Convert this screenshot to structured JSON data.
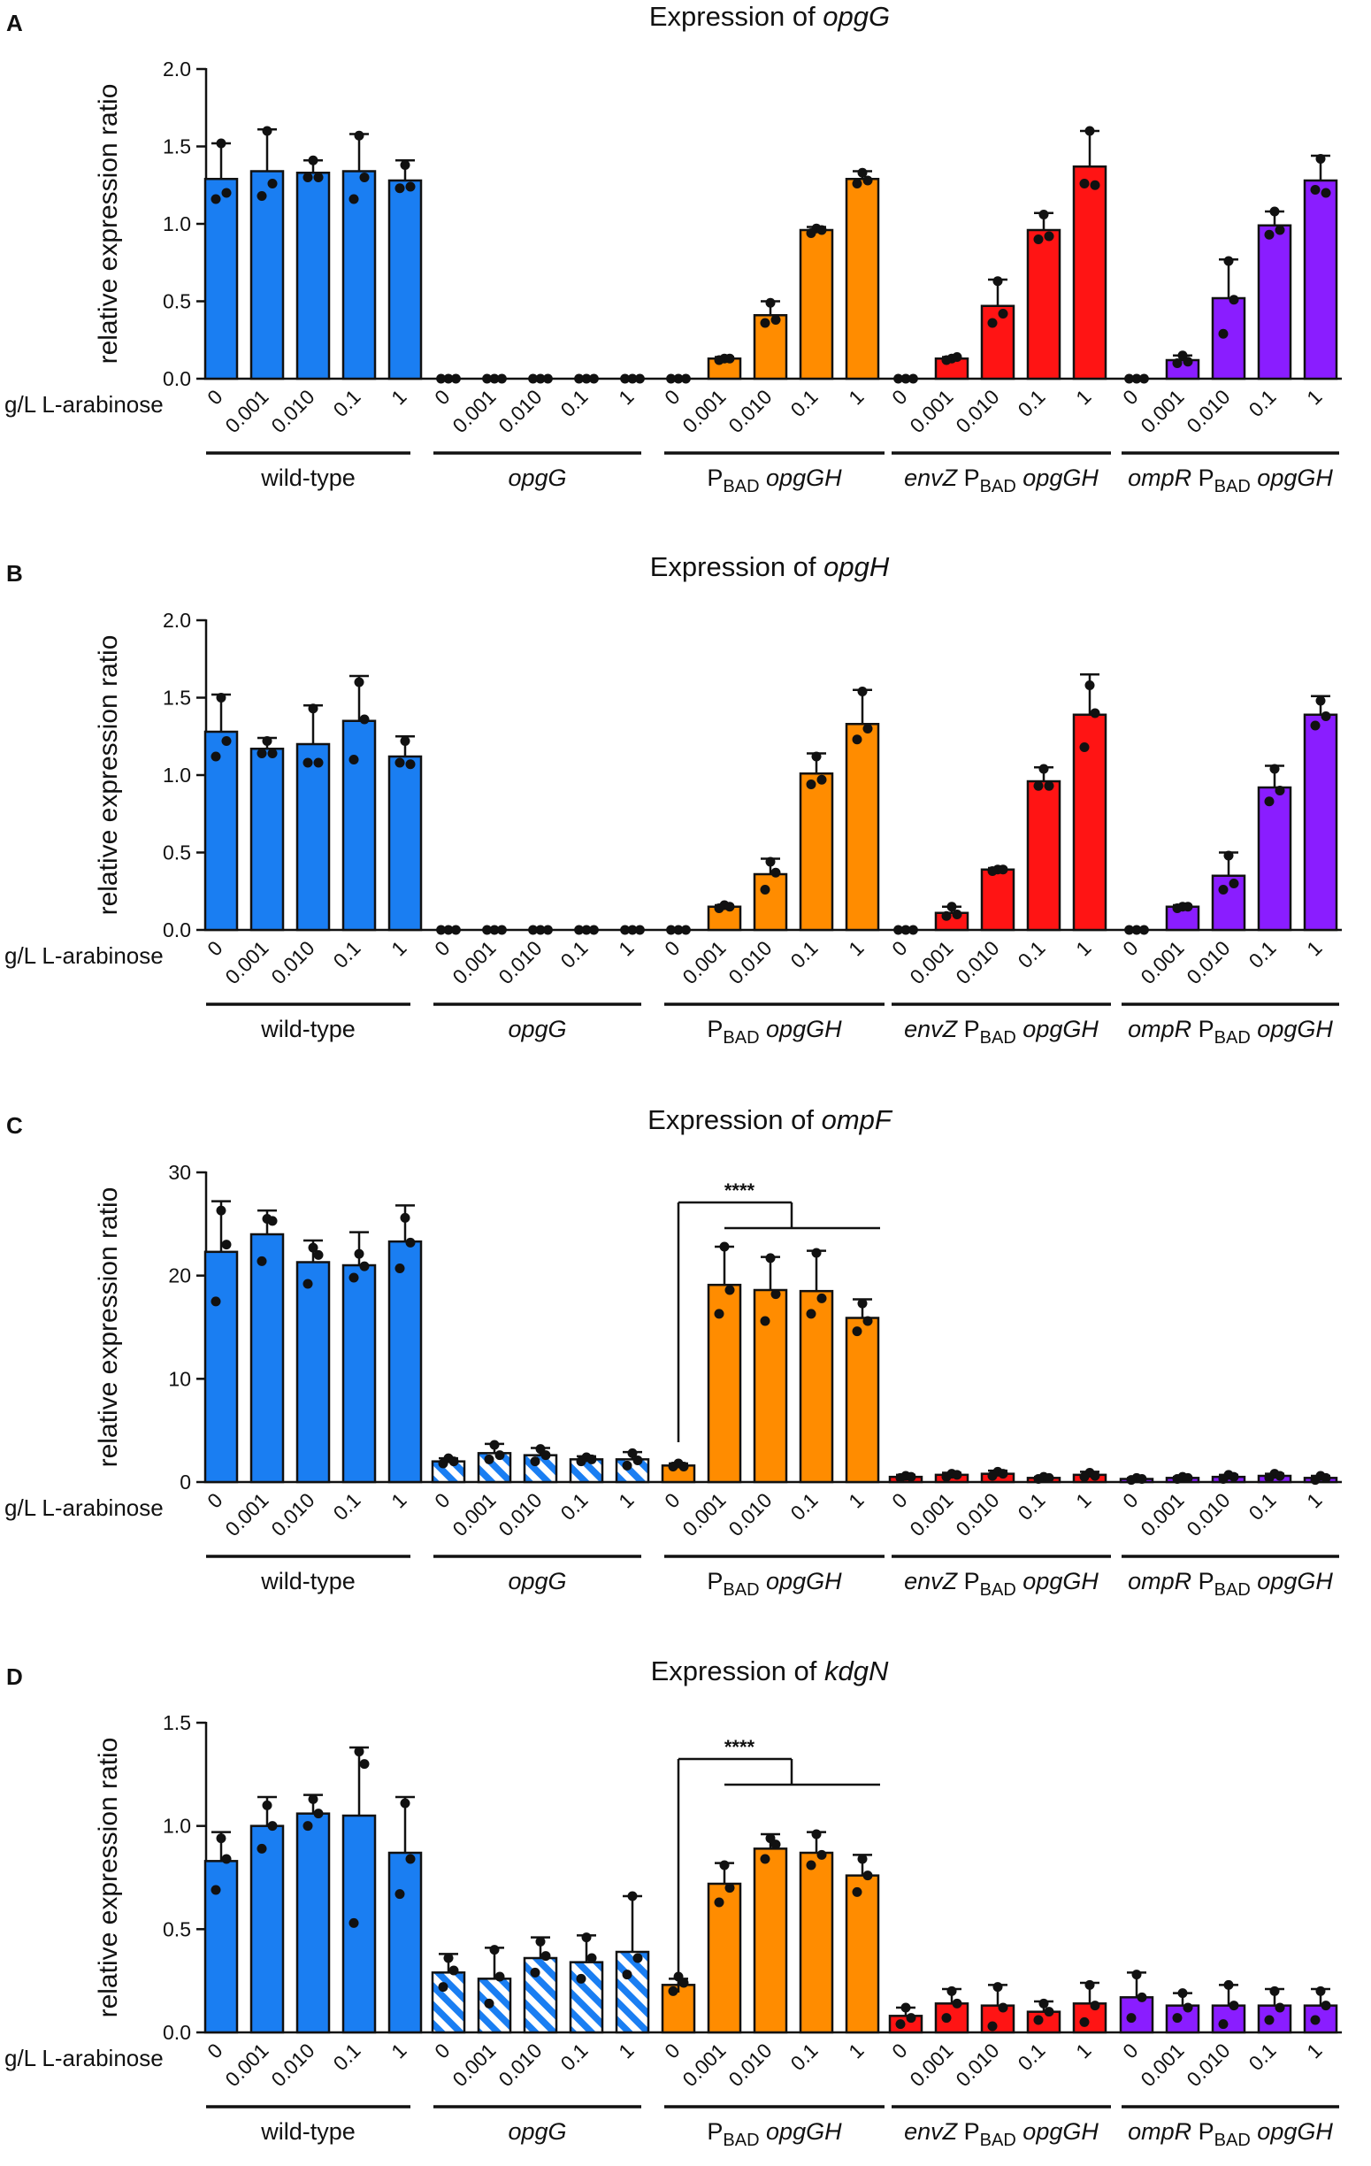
{
  "figure": {
    "x_row_label": "g/L L-arabinose",
    "concentrations": [
      "0",
      "0.001",
      "0.010",
      "0.1",
      "1"
    ],
    "groups": [
      {
        "key": "wt",
        "parts": [
          {
            "t": "wild-type",
            "s": "n"
          }
        ]
      },
      {
        "key": "opgG",
        "parts": [
          {
            "t": "opgG",
            "s": "i"
          }
        ]
      },
      {
        "key": "pbad",
        "parts": [
          {
            "t": "P",
            "s": "n"
          },
          {
            "t": "BAD",
            "s": "sub"
          },
          {
            "t": " opgGH",
            "s": "i"
          }
        ]
      },
      {
        "key": "envz",
        "parts": [
          {
            "t": "envZ",
            "s": "i"
          },
          {
            "t": " P",
            "s": "n"
          },
          {
            "t": "BAD",
            "s": "sub"
          },
          {
            "t": " opgGH",
            "s": "i"
          }
        ]
      },
      {
        "key": "ompr",
        "parts": [
          {
            "t": "ompR",
            "s": "i"
          },
          {
            "t": " P",
            "s": "n"
          },
          {
            "t": "BAD",
            "s": "sub"
          },
          {
            "t": " opgGH",
            "s": "i"
          }
        ]
      }
    ],
    "colors": {
      "wt": "#1a7ef2",
      "opgG": "#1a7ef2",
      "pbad": "#ff8c00",
      "envz": "#ff1414",
      "ompr": "#8a1dff",
      "axis": "#111111"
    }
  },
  "chart_data": [
    {
      "type": "bar",
      "panel": "A",
      "title": "Expression of ",
      "gene": "opgG",
      "ylabel": "relative expression ratio",
      "ylim": [
        0,
        2.0
      ],
      "yticks": [
        "0.0",
        "0.5",
        "1.0",
        "1.5",
        "2.0"
      ],
      "hatched_groups": [],
      "series": [
        {
          "name": "wild-type",
          "values": [
            1.29,
            1.34,
            1.33,
            1.34,
            1.28
          ],
          "errors": [
            0.23,
            0.27,
            0.08,
            0.24,
            0.13
          ],
          "points": [
            [
              1.52,
              1.2,
              1.16
            ],
            [
              1.6,
              1.26,
              1.18
            ],
            [
              1.41,
              1.3,
              1.3
            ],
            [
              1.57,
              1.3,
              1.16
            ],
            [
              1.38,
              1.24,
              1.23
            ]
          ]
        },
        {
          "name": "opgG",
          "values": [
            0,
            0,
            0,
            0,
            0
          ],
          "errors": [
            0,
            0,
            0,
            0,
            0
          ],
          "points": [
            [
              0,
              0,
              0
            ],
            [
              0,
              0,
              0
            ],
            [
              0,
              0,
              0
            ],
            [
              0,
              0,
              0
            ],
            [
              0,
              0,
              0
            ]
          ]
        },
        {
          "name": "PBAD opgGH",
          "values": [
            0,
            0.13,
            0.41,
            0.96,
            1.29
          ],
          "errors": [
            0,
            0.01,
            0.09,
            0.02,
            0.05
          ],
          "points": [
            [
              0,
              0,
              0
            ],
            [
              0.13,
              0.13,
              0.12
            ],
            [
              0.49,
              0.38,
              0.36
            ],
            [
              0.97,
              0.96,
              0.94
            ],
            [
              1.33,
              1.28,
              1.26
            ]
          ]
        },
        {
          "name": "envZ PBAD opgGH",
          "values": [
            0,
            0.13,
            0.47,
            0.96,
            1.37
          ],
          "errors": [
            0,
            0.01,
            0.17,
            0.11,
            0.23
          ],
          "points": [
            [
              0,
              0,
              0
            ],
            [
              0.13,
              0.14,
              0.12
            ],
            [
              0.63,
              0.42,
              0.36
            ],
            [
              1.06,
              0.92,
              0.9
            ],
            [
              1.6,
              1.25,
              1.26
            ]
          ]
        },
        {
          "name": "ompR PBAD opgGH",
          "values": [
            0,
            0.12,
            0.52,
            0.99,
            1.28
          ],
          "errors": [
            0,
            0.03,
            0.25,
            0.09,
            0.16
          ],
          "points": [
            [
              0,
              0,
              0
            ],
            [
              0.15,
              0.11,
              0.1
            ],
            [
              0.76,
              0.51,
              0.29
            ],
            [
              1.08,
              0.96,
              0.93
            ],
            [
              1.42,
              1.2,
              1.22
            ]
          ]
        }
      ]
    },
    {
      "type": "bar",
      "panel": "B",
      "title": "Expression of ",
      "gene": "opgH",
      "ylabel": "relative expression ratio",
      "ylim": [
        0,
        2.0
      ],
      "yticks": [
        "0.0",
        "0.5",
        "1.0",
        "1.5",
        "2.0"
      ],
      "hatched_groups": [],
      "series": [
        {
          "name": "wild-type",
          "values": [
            1.28,
            1.17,
            1.2,
            1.35,
            1.12
          ],
          "errors": [
            0.24,
            0.07,
            0.25,
            0.29,
            0.13
          ],
          "points": [
            [
              1.5,
              1.22,
              1.12
            ],
            [
              1.22,
              1.14,
              1.14
            ],
            [
              1.43,
              1.08,
              1.08
            ],
            [
              1.6,
              1.36,
              1.1
            ],
            [
              1.22,
              1.07,
              1.08
            ]
          ]
        },
        {
          "name": "opgG",
          "values": [
            0,
            0,
            0,
            0,
            0
          ],
          "errors": [
            0,
            0,
            0,
            0,
            0
          ],
          "points": [
            [
              0,
              0,
              0
            ],
            [
              0,
              0,
              0
            ],
            [
              0,
              0,
              0
            ],
            [
              0,
              0,
              0
            ],
            [
              0,
              0,
              0
            ]
          ]
        },
        {
          "name": "PBAD opgGH",
          "values": [
            0,
            0.15,
            0.36,
            1.01,
            1.33
          ],
          "errors": [
            0,
            0.01,
            0.1,
            0.13,
            0.22
          ],
          "points": [
            [
              0,
              0,
              0
            ],
            [
              0.16,
              0.15,
              0.14
            ],
            [
              0.44,
              0.37,
              0.26
            ],
            [
              1.12,
              0.97,
              0.94
            ],
            [
              1.54,
              1.3,
              1.23
            ]
          ]
        },
        {
          "name": "envZ PBAD opgGH",
          "values": [
            0,
            0.11,
            0.39,
            0.96,
            1.39
          ],
          "errors": [
            0,
            0.04,
            0.01,
            0.09,
            0.26
          ],
          "points": [
            [
              0,
              0,
              0
            ],
            [
              0.15,
              0.1,
              0.09
            ],
            [
              0.39,
              0.39,
              0.38
            ],
            [
              1.04,
              0.93,
              0.93
            ],
            [
              1.58,
              1.4,
              1.18
            ]
          ]
        },
        {
          "name": "ompR PBAD opgGH",
          "values": [
            0,
            0.15,
            0.35,
            0.92,
            1.39
          ],
          "errors": [
            0,
            0.01,
            0.15,
            0.14,
            0.12
          ],
          "points": [
            [
              0,
              0,
              0
            ],
            [
              0.15,
              0.15,
              0.14
            ],
            [
              0.48,
              0.3,
              0.26
            ],
            [
              1.04,
              0.9,
              0.83
            ],
            [
              1.48,
              1.38,
              1.32
            ]
          ]
        }
      ]
    },
    {
      "type": "bar",
      "panel": "C",
      "title": "Expression of ",
      "gene": "ompF",
      "ylabel": "relative expression ratio",
      "ylim": [
        0,
        30
      ],
      "yticks": [
        "0",
        "10",
        "20",
        "30"
      ],
      "hatched_groups": [
        1
      ],
      "significance": {
        "label": "****",
        "level": 25.8,
        "drop": 2.2
      },
      "series": [
        {
          "name": "wild-type",
          "values": [
            22.3,
            24.0,
            21.3,
            21.0,
            23.3
          ],
          "errors": [
            4.9,
            2.3,
            2.1,
            3.2,
            3.5
          ],
          "points": [
            [
              26.3,
              23.0,
              17.5
            ],
            [
              25.5,
              25.3,
              21.4
            ],
            [
              22.7,
              22.0,
              19.2
            ],
            [
              22.1,
              20.9,
              19.8
            ],
            [
              25.6,
              23.2,
              20.7
            ]
          ]
        },
        {
          "name": "opgG",
          "values": [
            2.0,
            2.8,
            2.6,
            2.2,
            2.2
          ],
          "errors": [
            0.3,
            0.9,
            0.7,
            0.3,
            0.7
          ],
          "points": [
            [
              2.3,
              2.0,
              1.8
            ],
            [
              3.6,
              2.6,
              2.2
            ],
            [
              3.2,
              2.6,
              2.0
            ],
            [
              2.4,
              2.2,
              2.0
            ],
            [
              2.8,
              2.1,
              1.6
            ]
          ]
        },
        {
          "name": "PBAD opgGH",
          "values": [
            1.6,
            19.1,
            18.6,
            18.5,
            15.9
          ],
          "errors": [
            0.2,
            3.7,
            3.2,
            3.9,
            1.8
          ],
          "points": [
            [
              1.8,
              1.5,
              1.5
            ],
            [
              22.8,
              18.6,
              16.3
            ],
            [
              21.7,
              18.2,
              15.6
            ],
            [
              22.2,
              17.8,
              16.3
            ],
            [
              17.3,
              15.6,
              14.6
            ]
          ]
        },
        {
          "name": "envZ PBAD opgGH",
          "values": [
            0.5,
            0.7,
            0.8,
            0.4,
            0.7
          ],
          "errors": [
            0.2,
            0.2,
            0.3,
            0.1,
            0.3
          ],
          "points": [
            [
              0.6,
              0.5,
              0.4
            ],
            [
              0.8,
              0.7,
              0.5
            ],
            [
              1.0,
              0.8,
              0.6
            ],
            [
              0.5,
              0.4,
              0.3
            ],
            [
              0.9,
              0.6,
              0.5
            ]
          ]
        },
        {
          "name": "ompR PBAD opgGH",
          "values": [
            0.3,
            0.4,
            0.5,
            0.6,
            0.4
          ],
          "errors": [
            0.1,
            0.1,
            0.2,
            0.2,
            0.2
          ],
          "points": [
            [
              0.4,
              0.3,
              0.2
            ],
            [
              0.5,
              0.4,
              0.3
            ],
            [
              0.7,
              0.5,
              0.3
            ],
            [
              0.8,
              0.6,
              0.4
            ],
            [
              0.6,
              0.4,
              0.2
            ]
          ]
        }
      ]
    },
    {
      "type": "bar",
      "panel": "D",
      "title": "Expression of ",
      "gene": "kdgN",
      "ylabel": "relative expression ratio",
      "ylim": [
        0,
        1.5
      ],
      "yticks": [
        "0.0",
        "0.5",
        "1.0",
        "1.5"
      ],
      "hatched_groups": [
        1
      ],
      "significance": {
        "label": "****",
        "level": 1.26,
        "drop": 0.12
      },
      "series": [
        {
          "name": "wild-type",
          "values": [
            0.83,
            1.0,
            1.06,
            1.05,
            0.87
          ],
          "errors": [
            0.14,
            0.14,
            0.09,
            0.33,
            0.27
          ],
          "points": [
            [
              0.94,
              0.84,
              0.69
            ],
            [
              1.1,
              1.0,
              0.89
            ],
            [
              1.13,
              1.06,
              1.0
            ],
            [
              1.36,
              1.3,
              0.53
            ],
            [
              1.11,
              0.84,
              0.67
            ]
          ]
        },
        {
          "name": "opgG",
          "values": [
            0.29,
            0.26,
            0.36,
            0.34,
            0.39
          ],
          "errors": [
            0.09,
            0.15,
            0.1,
            0.13,
            0.27
          ],
          "points": [
            [
              0.36,
              0.3,
              0.22
            ],
            [
              0.4,
              0.27,
              0.14
            ],
            [
              0.44,
              0.37,
              0.29
            ],
            [
              0.46,
              0.36,
              0.26
            ],
            [
              0.66,
              0.36,
              0.28
            ]
          ]
        },
        {
          "name": "PBAD opgGH",
          "values": [
            0.23,
            0.72,
            0.89,
            0.87,
            0.76
          ],
          "errors": [
            0.03,
            0.1,
            0.07,
            0.1,
            0.1
          ],
          "points": [
            [
              0.27,
              0.24,
              0.2
            ],
            [
              0.81,
              0.7,
              0.63
            ],
            [
              0.94,
              0.91,
              0.84
            ],
            [
              0.96,
              0.86,
              0.81
            ],
            [
              0.84,
              0.76,
              0.68
            ]
          ]
        },
        {
          "name": "envZ PBAD opgGH",
          "values": [
            0.08,
            0.14,
            0.13,
            0.1,
            0.14
          ],
          "errors": [
            0.04,
            0.07,
            0.1,
            0.05,
            0.1
          ],
          "points": [
            [
              0.12,
              0.07,
              0.04
            ],
            [
              0.2,
              0.14,
              0.07
            ],
            [
              0.22,
              0.12,
              0.03
            ],
            [
              0.14,
              0.1,
              0.06
            ],
            [
              0.23,
              0.13,
              0.05
            ]
          ]
        },
        {
          "name": "ompR PBAD opgGH",
          "values": [
            0.17,
            0.13,
            0.13,
            0.13,
            0.13
          ],
          "errors": [
            0.12,
            0.06,
            0.1,
            0.08,
            0.08
          ],
          "points": [
            [
              0.28,
              0.17,
              0.07
            ],
            [
              0.19,
              0.12,
              0.07
            ],
            [
              0.23,
              0.13,
              0.04
            ],
            [
              0.2,
              0.12,
              0.06
            ],
            [
              0.2,
              0.13,
              0.06
            ]
          ]
        }
      ]
    }
  ]
}
